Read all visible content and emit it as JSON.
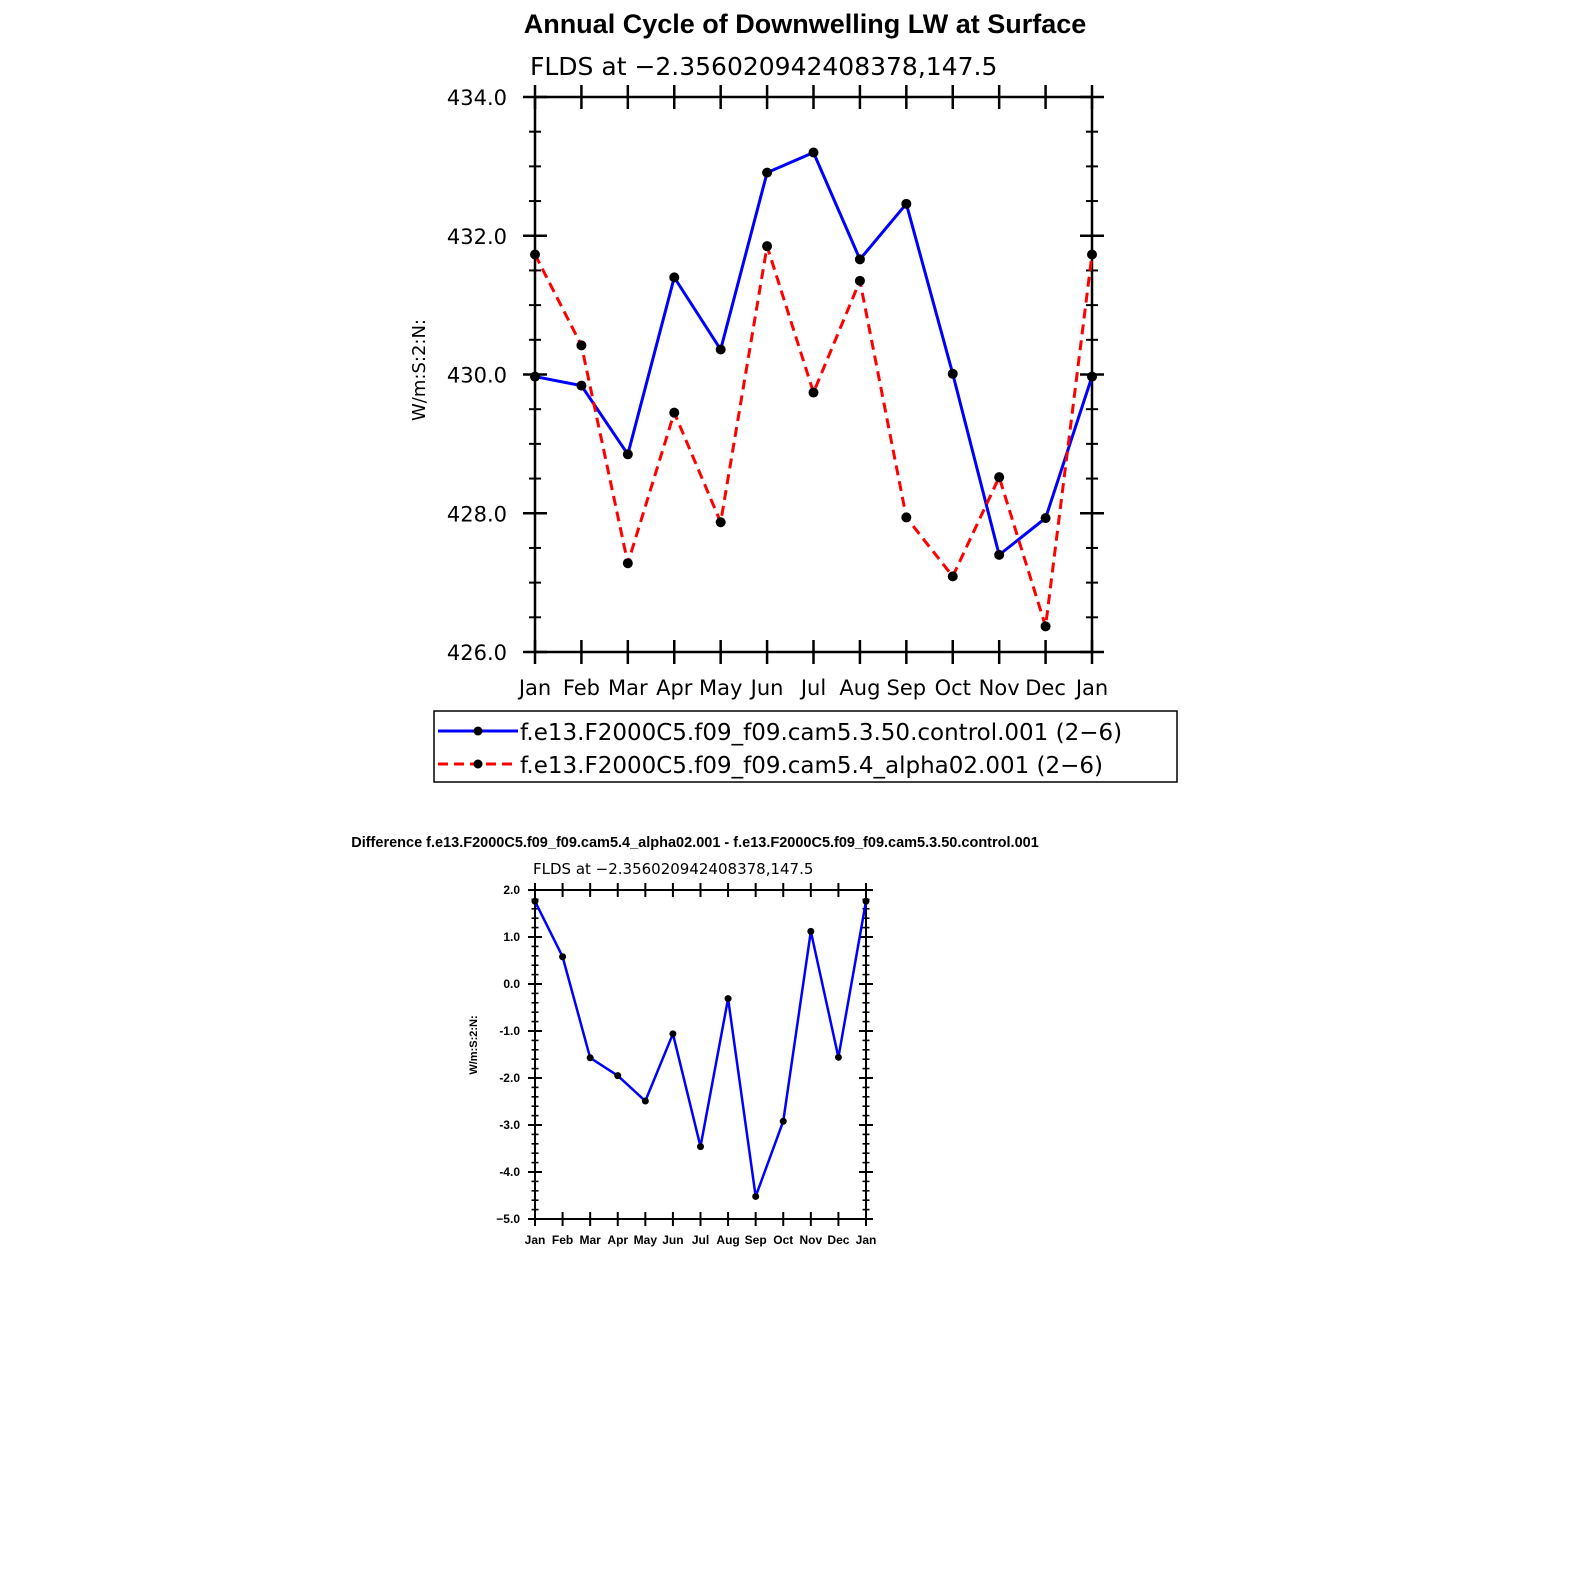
{
  "chart_data": [
    {
      "type": "line",
      "title": "Annual Cycle of Downwelling LW at Surface",
      "subtitle": "FLDS at −2.356020942408378,147.5",
      "ylabel": "W/m:S:2:N:",
      "xlabel": "",
      "categories": [
        "Jan",
        "Feb",
        "Mar",
        "Apr",
        "May",
        "Jun",
        "Jul",
        "Aug",
        "Sep",
        "Oct",
        "Nov",
        "Dec",
        "Jan"
      ],
      "ylim": [
        426.0,
        434.0
      ],
      "yticks": [
        "426.0",
        "428.0",
        "430.0",
        "432.0",
        "434.0"
      ],
      "grid": false,
      "legend_position": "bottom",
      "series": [
        {
          "name": "f.e13.F2000C5.f09_f09.cam5.3.50.control.001 (2−6)",
          "color": "#0000ff",
          "style": "solid",
          "values": [
            429.97,
            429.84,
            428.85,
            431.4,
            430.36,
            432.91,
            433.2,
            431.66,
            432.46,
            430.01,
            427.4,
            427.93,
            429.97
          ]
        },
        {
          "name": "f.e13.F2000C5.f09_f09.cam5.4_alpha02.001 (2−6)",
          "color": "#ff0000",
          "style": "dashed",
          "values": [
            431.73,
            430.42,
            427.28,
            429.45,
            427.87,
            431.85,
            429.74,
            431.35,
            427.94,
            427.09,
            428.52,
            426.37,
            431.73
          ]
        }
      ]
    },
    {
      "type": "line",
      "title": "Difference f.e13.F2000C5.f09_f09.cam5.4_alpha02.001 - f.e13.F2000C5.f09_f09.cam5.3.50.control.001",
      "subtitle": "FLDS at −2.356020942408378,147.5",
      "ylabel": "W/m:S:2:N:",
      "xlabel": "",
      "categories": [
        "Jan",
        "Feb",
        "Mar",
        "Apr",
        "May",
        "Jun",
        "Jul",
        "Aug",
        "Sep",
        "Oct",
        "Nov",
        "Dec",
        "Jan"
      ],
      "ylim": [
        -5.0,
        2.0
      ],
      "yticks": [
        "−5.0",
        "-4.0",
        "-3.0",
        "-2.0",
        "-1.0",
        "0.0",
        "1.0",
        "2.0"
      ],
      "grid": false,
      "series": [
        {
          "color": "#0000ff",
          "style": "solid",
          "values": [
            1.76,
            0.58,
            -1.57,
            -1.95,
            -2.49,
            -1.06,
            -3.46,
            -0.31,
            -4.52,
            -2.92,
            1.12,
            -1.56,
            1.76
          ]
        }
      ]
    }
  ]
}
